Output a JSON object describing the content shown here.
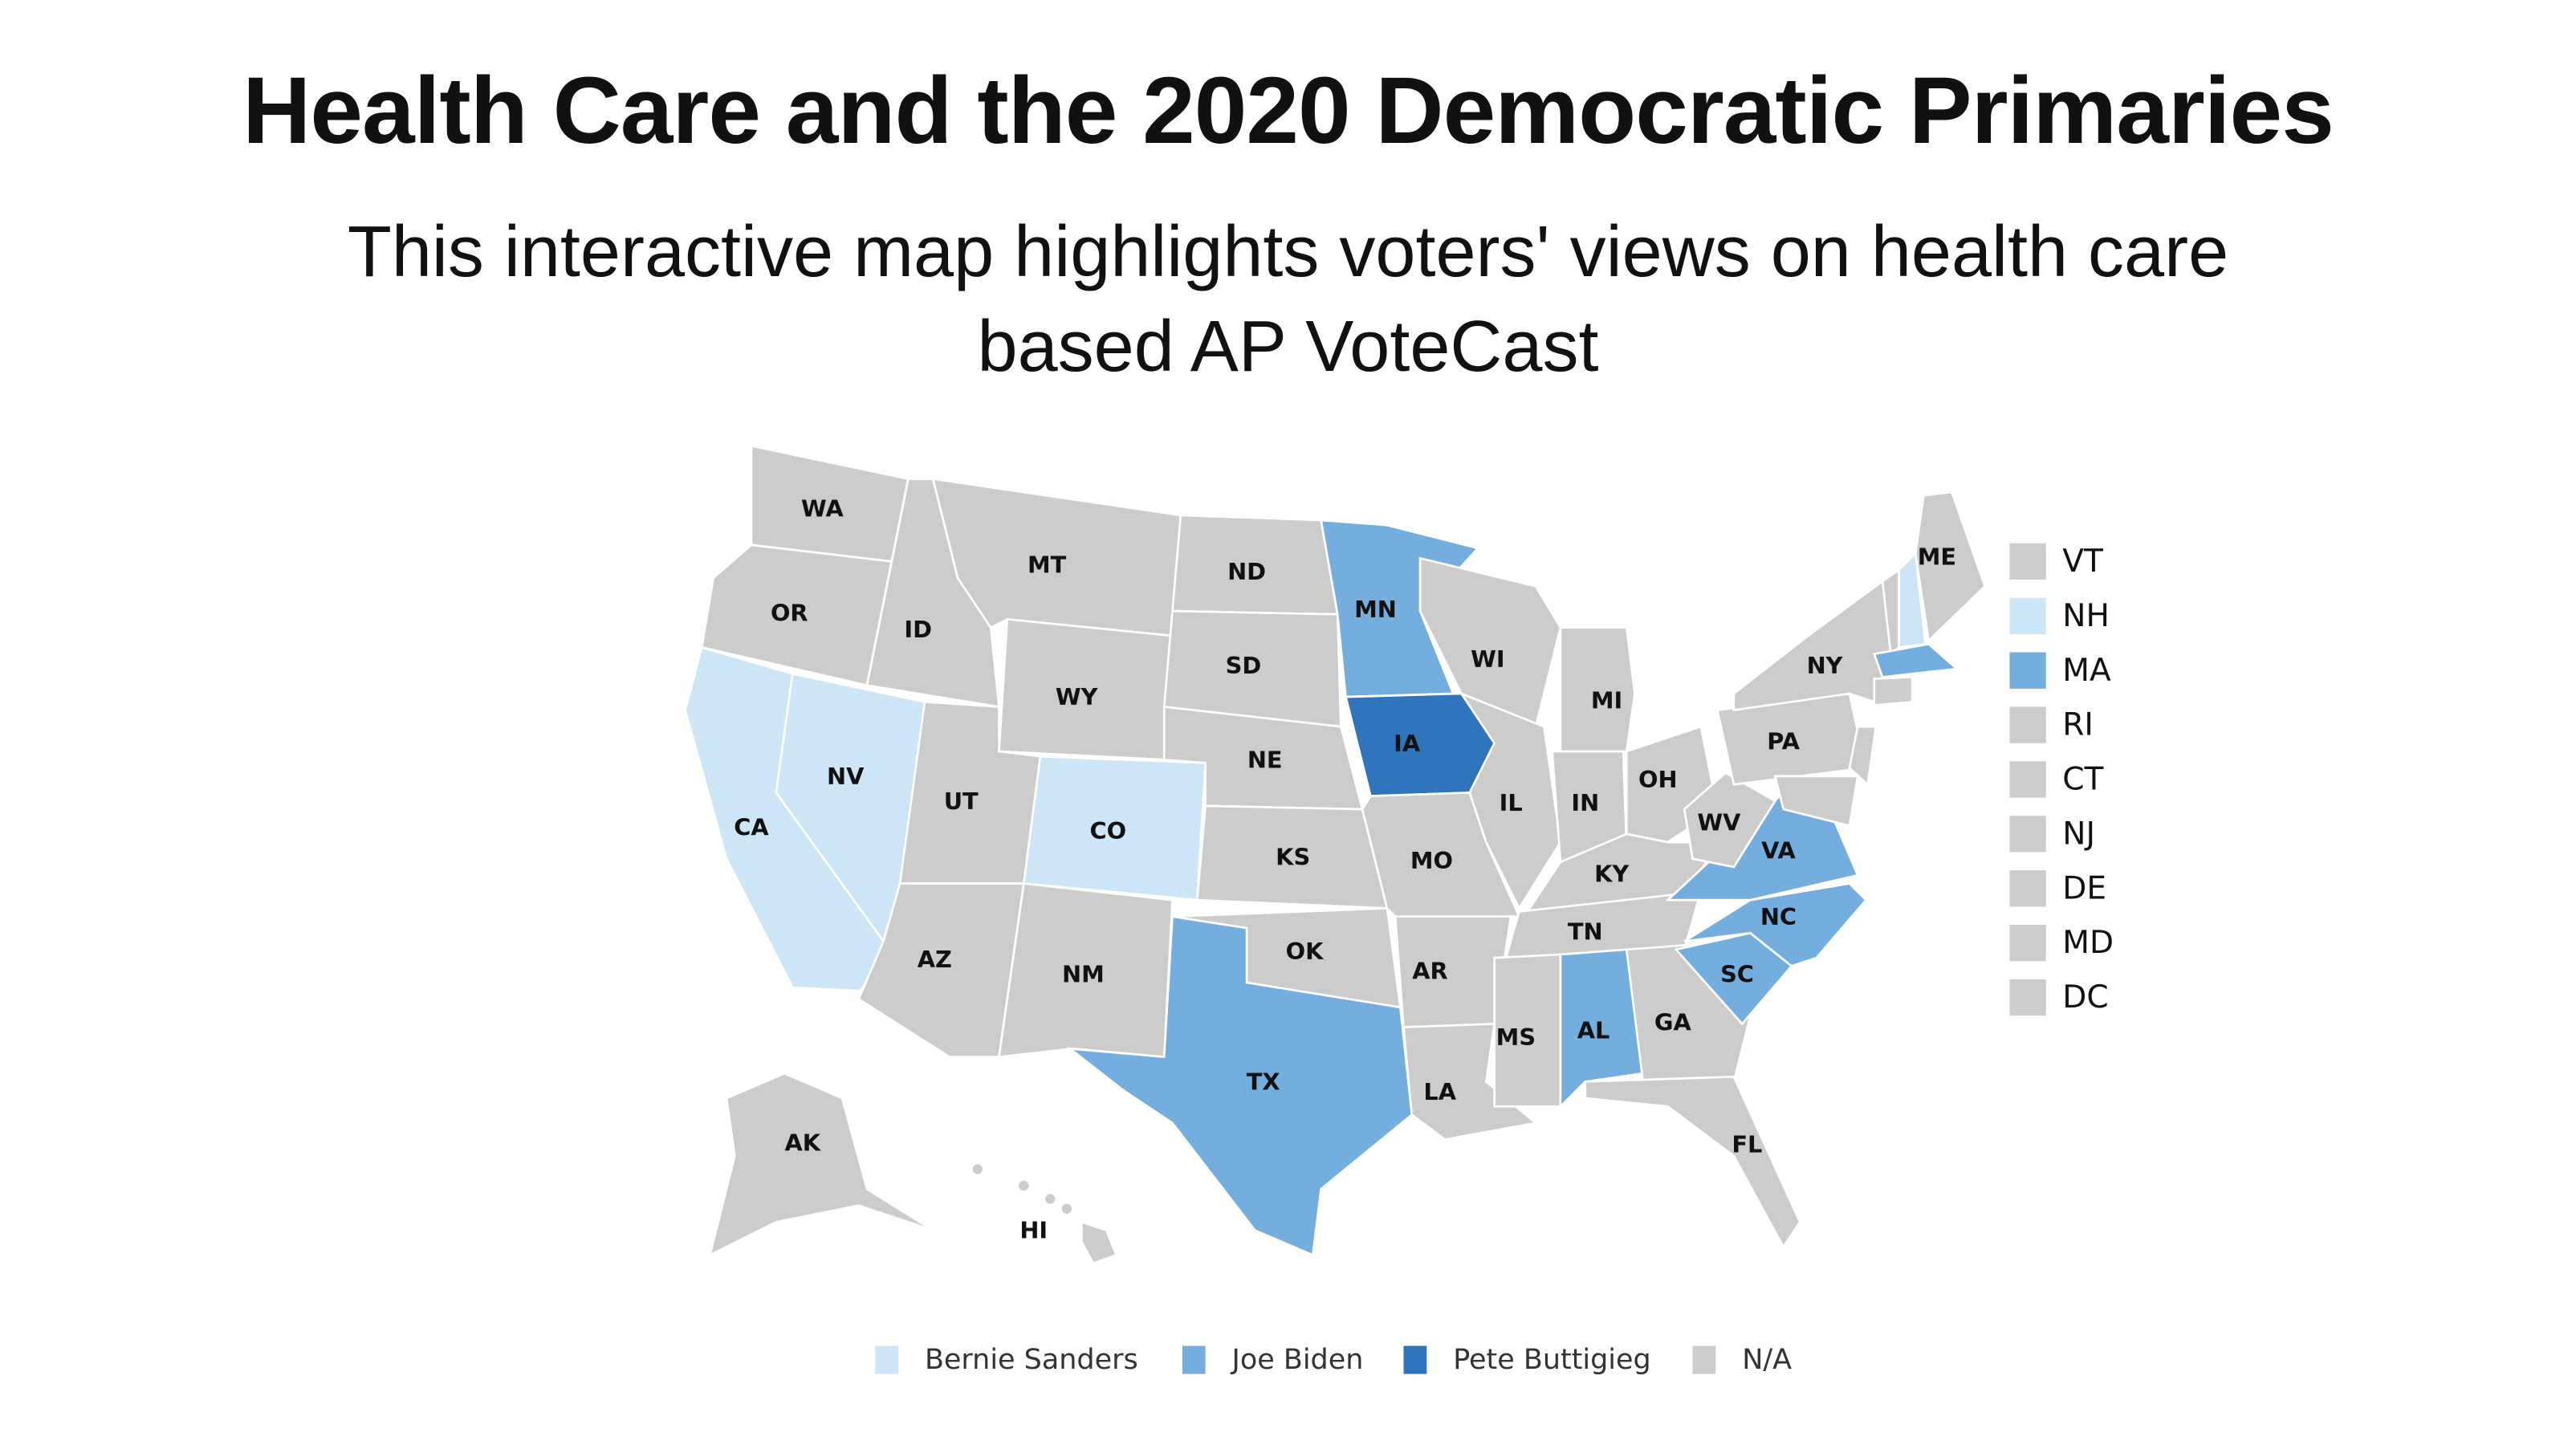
{
  "header": {
    "title": "Health Care and the 2020 Democratic Primaries",
    "subtitle": "This interactive map highlights voters' views on health care based AP VoteCast"
  },
  "colors": {
    "Bernie Sanders": "#cce6f8",
    "Joe Biden": "#73aedf",
    "Pete Buttigieg": "#2f75bd",
    "N/A": "#cccccc"
  },
  "legend": [
    {
      "label": "Bernie Sanders"
    },
    {
      "label": "Joe Biden"
    },
    {
      "label": "Pete Buttigieg"
    },
    {
      "label": "N/A"
    }
  ],
  "small_states": [
    {
      "abbr": "VT",
      "winner": "N/A"
    },
    {
      "abbr": "NH",
      "winner": "Bernie Sanders"
    },
    {
      "abbr": "MA",
      "winner": "Joe Biden"
    },
    {
      "abbr": "RI",
      "winner": "N/A"
    },
    {
      "abbr": "CT",
      "winner": "N/A"
    },
    {
      "abbr": "NJ",
      "winner": "N/A"
    },
    {
      "abbr": "DE",
      "winner": "N/A"
    },
    {
      "abbr": "MD",
      "winner": "N/A"
    },
    {
      "abbr": "DC",
      "winner": "N/A"
    }
  ],
  "states": [
    {
      "abbr": "WA",
      "winner": "N/A"
    },
    {
      "abbr": "OR",
      "winner": "N/A"
    },
    {
      "abbr": "CA",
      "winner": "Bernie Sanders"
    },
    {
      "abbr": "NV",
      "winner": "Bernie Sanders"
    },
    {
      "abbr": "ID",
      "winner": "N/A"
    },
    {
      "abbr": "MT",
      "winner": "N/A"
    },
    {
      "abbr": "WY",
      "winner": "N/A"
    },
    {
      "abbr": "UT",
      "winner": "N/A"
    },
    {
      "abbr": "CO",
      "winner": "Bernie Sanders"
    },
    {
      "abbr": "AZ",
      "winner": "N/A"
    },
    {
      "abbr": "NM",
      "winner": "N/A"
    },
    {
      "abbr": "ND",
      "winner": "N/A"
    },
    {
      "abbr": "SD",
      "winner": "N/A"
    },
    {
      "abbr": "NE",
      "winner": "N/A"
    },
    {
      "abbr": "KS",
      "winner": "N/A"
    },
    {
      "abbr": "OK",
      "winner": "N/A"
    },
    {
      "abbr": "TX",
      "winner": "Joe Biden"
    },
    {
      "abbr": "MN",
      "winner": "Joe Biden"
    },
    {
      "abbr": "IA",
      "winner": "Pete Buttigieg"
    },
    {
      "abbr": "MO",
      "winner": "N/A"
    },
    {
      "abbr": "AR",
      "winner": "N/A"
    },
    {
      "abbr": "LA",
      "winner": "N/A"
    },
    {
      "abbr": "WI",
      "winner": "N/A"
    },
    {
      "abbr": "IL",
      "winner": "N/A"
    },
    {
      "abbr": "MI",
      "winner": "N/A"
    },
    {
      "abbr": "IN",
      "winner": "N/A"
    },
    {
      "abbr": "OH",
      "winner": "N/A"
    },
    {
      "abbr": "KY",
      "winner": "N/A"
    },
    {
      "abbr": "TN",
      "winner": "N/A"
    },
    {
      "abbr": "MS",
      "winner": "N/A"
    },
    {
      "abbr": "AL",
      "winner": "Joe Biden"
    },
    {
      "abbr": "GA",
      "winner": "N/A"
    },
    {
      "abbr": "FL",
      "winner": "N/A"
    },
    {
      "abbr": "SC",
      "winner": "Joe Biden"
    },
    {
      "abbr": "NC",
      "winner": "Joe Biden"
    },
    {
      "abbr": "VA",
      "winner": "Joe Biden"
    },
    {
      "abbr": "WV",
      "winner": "N/A"
    },
    {
      "abbr": "PA",
      "winner": "N/A"
    },
    {
      "abbr": "NY",
      "winner": "N/A"
    },
    {
      "abbr": "VT",
      "winner": "N/A",
      "label": false
    },
    {
      "abbr": "NH",
      "winner": "Bernie Sanders",
      "label": false
    },
    {
      "abbr": "ME",
      "winner": "N/A"
    },
    {
      "abbr": "MA",
      "winner": "Joe Biden",
      "label": false
    },
    {
      "abbr": "CT",
      "winner": "N/A",
      "label": false
    },
    {
      "abbr": "NJ",
      "winner": "N/A",
      "label": false
    },
    {
      "abbr": "MD",
      "winner": "N/A",
      "label": false
    },
    {
      "abbr": "AK",
      "winner": "N/A"
    },
    {
      "abbr": "HI",
      "winner": "N/A"
    }
  ]
}
